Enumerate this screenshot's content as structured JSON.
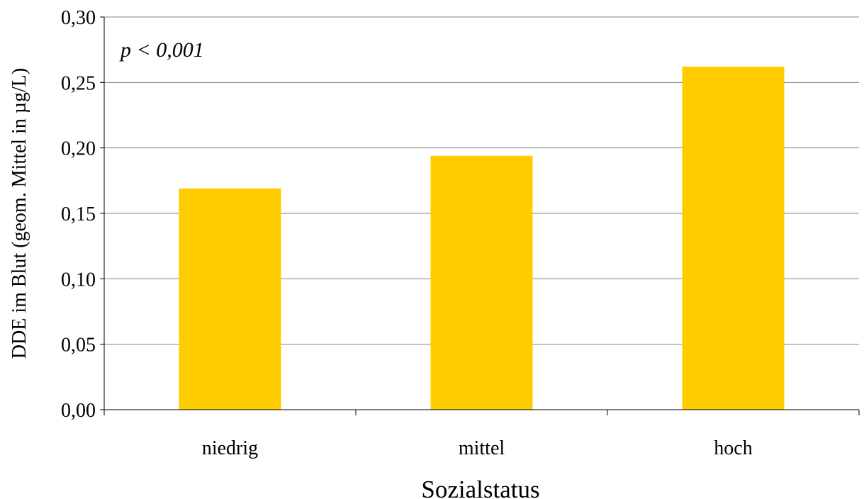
{
  "chart_data": {
    "type": "bar",
    "categories": [
      "niedrig",
      "mittel",
      "hoch"
    ],
    "values": [
      0.169,
      0.194,
      0.262
    ],
    "title": "",
    "xlabel": "Sozialstatus",
    "ylabel": "DDE im Blut (geom. Mittel in µg/L)",
    "ylim": [
      0,
      0.3
    ],
    "yticks": [
      "0,00",
      "0,05",
      "0,10",
      "0,15",
      "0,20",
      "0,25",
      "0,30"
    ],
    "annotation": "p < 0,001",
    "grid": true,
    "legend": "none",
    "bar_color": "#FFCC00",
    "grid_color": "#808080"
  }
}
